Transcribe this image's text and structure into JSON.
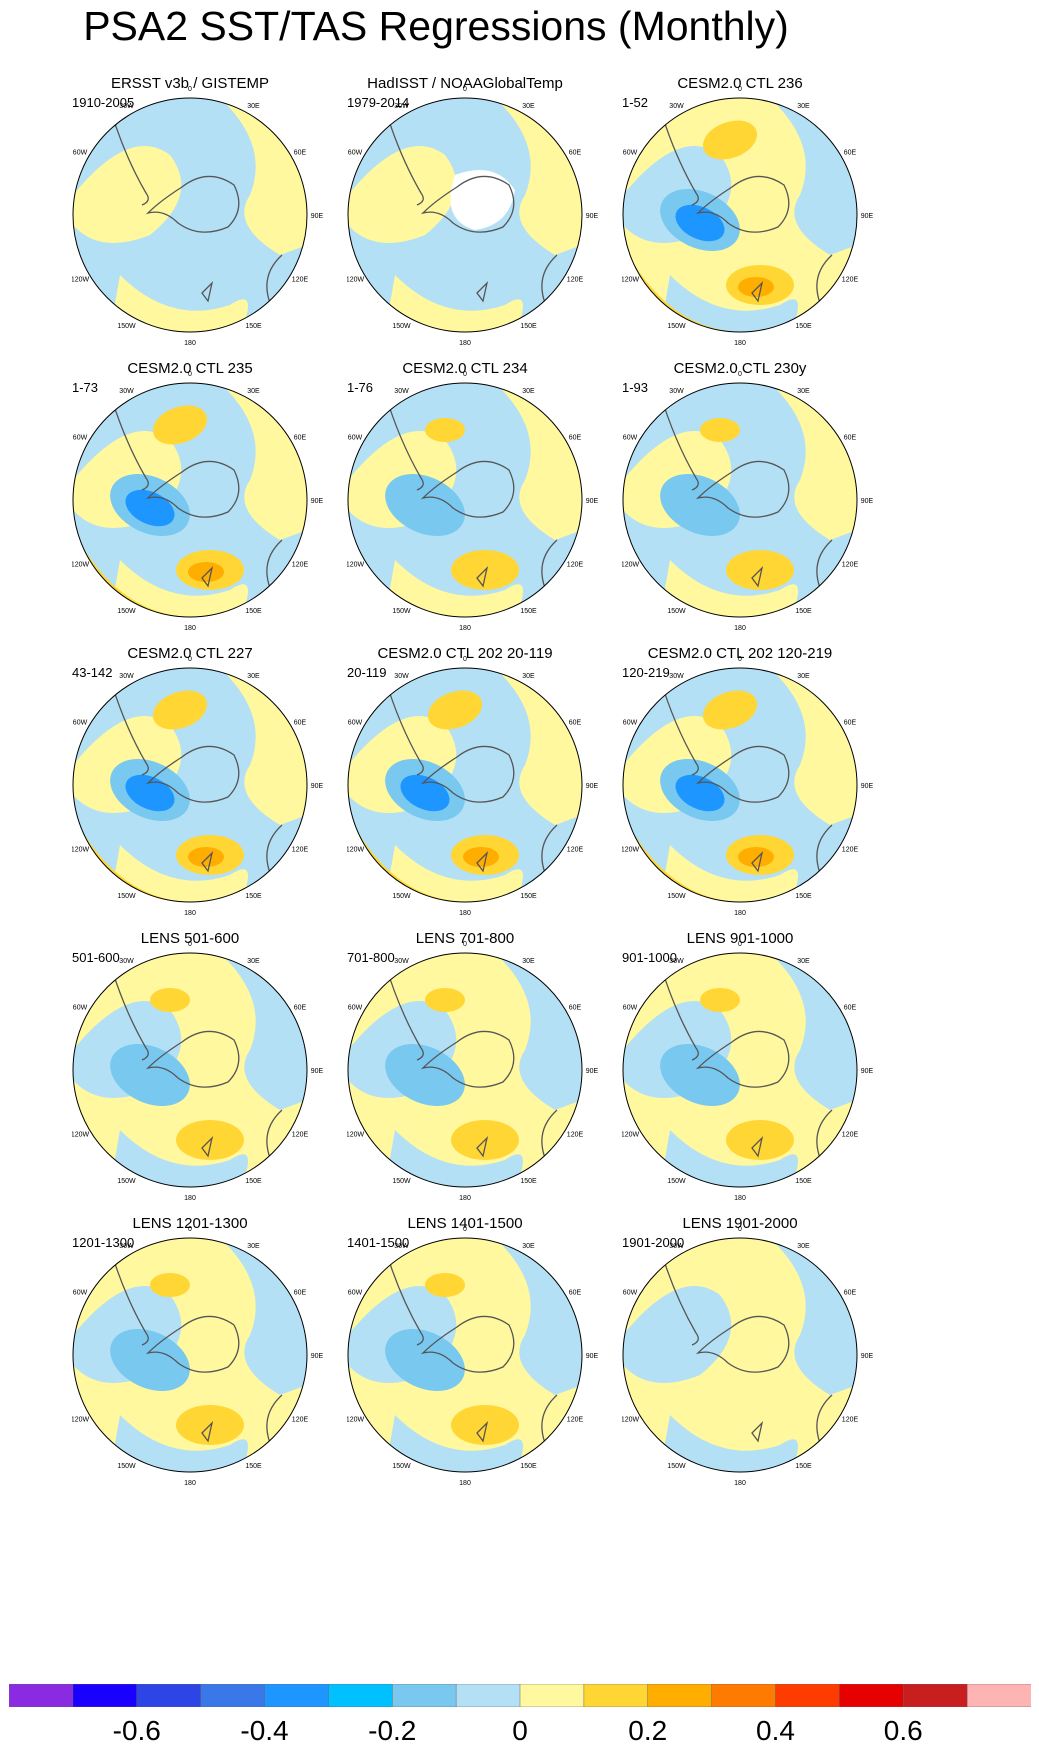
{
  "title": "PSA2 SST/TAS Regressions (Monthly)",
  "longitude_labels": [
    "0",
    "30E",
    "60E",
    "90E",
    "120E",
    "150E",
    "180",
    "150W",
    "120W",
    "90W",
    "60W",
    "30W"
  ],
  "panels": [
    {
      "title": "ERSST v3b / GISTEMP",
      "period": "1910-2005",
      "dominant": "weak-negative",
      "pattern": "weak",
      "gap": "none"
    },
    {
      "title": "HadISST / NOAAGlobalTemp",
      "period": "1979-2014",
      "dominant": "weak-negative",
      "pattern": "weak",
      "gap": "antarctica"
    },
    {
      "title": "CESM2.0 CTL 236",
      "period": "1-52",
      "dominant": "weak-positive",
      "pattern": "strong",
      "gap": "none"
    },
    {
      "title": "CESM2.0 CTL 235",
      "period": "1-73",
      "dominant": "weak-negative",
      "pattern": "strong",
      "gap": "none"
    },
    {
      "title": "CESM2.0 CTL 234",
      "period": "1-76",
      "dominant": "weak-negative",
      "pattern": "moderate",
      "gap": "none"
    },
    {
      "title": "CESM2.0 CTL 230y",
      "period": "1-93",
      "dominant": "weak-negative",
      "pattern": "moderate",
      "gap": "none"
    },
    {
      "title": "CESM2.0 CTL 227",
      "period": "43-142",
      "dominant": "weak-negative",
      "pattern": "strong",
      "gap": "none"
    },
    {
      "title": "CESM2.0 CTL 202 20-119",
      "period": "20-119",
      "dominant": "weak-negative",
      "pattern": "strong",
      "gap": "none"
    },
    {
      "title": "CESM2.0 CTL 202 120-219",
      "period": "120-219",
      "dominant": "weak-negative",
      "pattern": "strong",
      "gap": "none"
    },
    {
      "title": "LENS 501-600",
      "period": "501-600",
      "dominant": "weak-positive",
      "pattern": "moderate",
      "gap": "none"
    },
    {
      "title": "LENS 701-800",
      "period": "701-800",
      "dominant": "weak-positive",
      "pattern": "moderate",
      "gap": "none"
    },
    {
      "title": "LENS 901-1000",
      "period": "901-1000",
      "dominant": "weak-positive",
      "pattern": "moderate",
      "gap": "none"
    },
    {
      "title": "LENS 1201-1300",
      "period": "1201-1300",
      "dominant": "weak-positive",
      "pattern": "moderate",
      "gap": "none"
    },
    {
      "title": "LENS 1401-1500",
      "period": "1401-1500",
      "dominant": "weak-positive",
      "pattern": "moderate",
      "gap": "none"
    },
    {
      "title": "LENS 1901-2000",
      "period": "1901-2000",
      "dominant": "weak-positive",
      "pattern": "weak",
      "gap": "none"
    }
  ],
  "colorbar": {
    "colors": [
      "#8a2be2",
      "#1a00ff",
      "#2e45e6",
      "#3a78ea",
      "#1e96ff",
      "#00c0ff",
      "#78c8f0",
      "#b4e0f5",
      "#fff89e",
      "#ffd633",
      "#ffae00",
      "#ff7a00",
      "#ff3c00",
      "#e60000",
      "#c81e1e",
      "#ffb4b4"
    ],
    "labels": [
      "-0.6",
      "-0.4",
      "-0.2",
      "0",
      "0.2",
      "0.4",
      "0.6"
    ]
  },
  "style": {
    "map_colors": {
      "weak-negative": "#b4e0f5",
      "weak-positive": "#fff89e",
      "positive": "#ffd633",
      "moderate-positive": "#ffae00",
      "negative": "#78c8f0",
      "moderate-negative": "#1e96ff",
      "strong-negative": "#3a78ea",
      "missing": "#ffffff",
      "coastline": "#555555"
    }
  }
}
